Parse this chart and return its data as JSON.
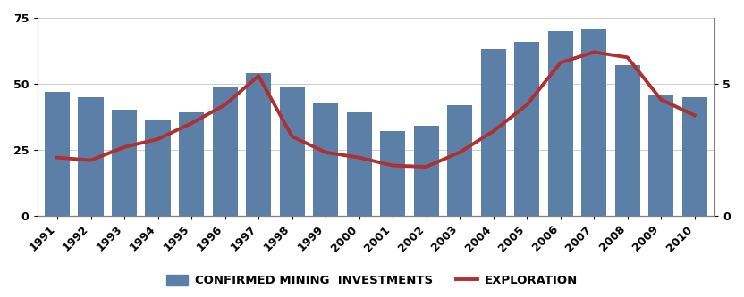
{
  "years": [
    1991,
    1992,
    1993,
    1994,
    1995,
    1996,
    1997,
    1998,
    1999,
    2000,
    2001,
    2002,
    2003,
    2004,
    2005,
    2006,
    2007,
    2008,
    2009,
    2010
  ],
  "bar_values": [
    47,
    45,
    40,
    36,
    39,
    49,
    54,
    49,
    43,
    39,
    32,
    34,
    42,
    63,
    66,
    70,
    71,
    57,
    46,
    45
  ],
  "exploration": [
    2.2,
    2.1,
    2.6,
    2.9,
    3.5,
    4.2,
    5.3,
    3.0,
    2.4,
    2.2,
    1.9,
    1.85,
    2.4,
    3.2,
    4.2,
    5.8,
    6.2,
    6.0,
    4.4,
    3.8
  ],
  "bar_color": "#5b7fa6",
  "line_color": "#b03030",
  "yticks_left": [
    0,
    25,
    50,
    75
  ],
  "yticks_right": [
    0,
    5
  ],
  "ylim_left": [
    0,
    75
  ],
  "ylim_right": [
    0,
    7.5
  ],
  "legend_bar_label": "CONFIRMED MINING  INVESTMENTS",
  "legend_line_label": "EXPLORATION",
  "background_color": "#ffffff",
  "tick_label_fontsize": 9,
  "legend_fontsize": 9.5
}
